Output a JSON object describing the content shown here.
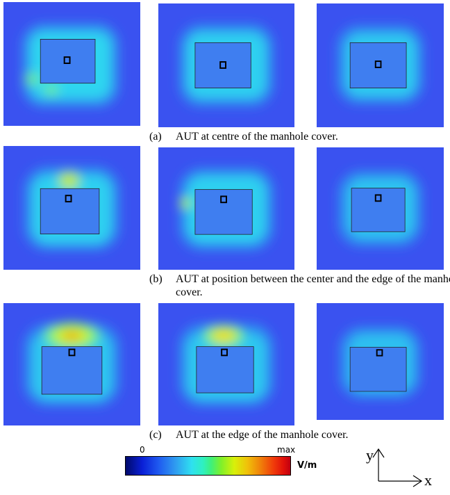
{
  "captions": {
    "a": {
      "label": "(a)",
      "text": "AUT at centre of the manhole cover."
    },
    "b": {
      "label": "(b)",
      "text": "AUT at position between the center and the edge of the manhole",
      "text_cont": "cover."
    },
    "c": {
      "label": "(c)",
      "text": "AUT at the edge of the manhole cover."
    }
  },
  "colorbar": {
    "min_label": "0",
    "max_label": "max",
    "unit": "V/m"
  },
  "axes": {
    "x_label": "x",
    "y_label": "y"
  },
  "colors": {
    "background_field": "#3a52f0",
    "cyan": "#2fe0f0",
    "hot": "#f0e000"
  }
}
